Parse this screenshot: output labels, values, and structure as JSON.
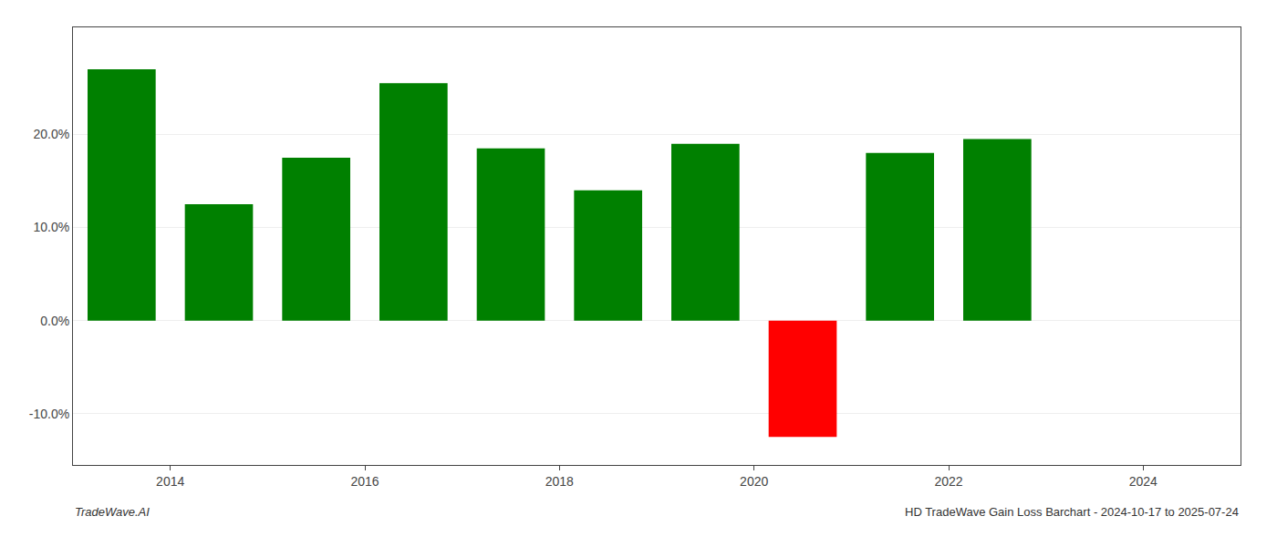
{
  "chart_data": {
    "type": "bar",
    "x": [
      2013.5,
      2014.5,
      2015.5,
      2016.5,
      2017.5,
      2018.5,
      2019.5,
      2020.5,
      2021.5,
      2022.5
    ],
    "values": [
      0.27,
      0.125,
      0.175,
      0.255,
      0.185,
      0.14,
      0.19,
      -0.125,
      0.18,
      0.195
    ],
    "colors": [
      "#008000",
      "#008000",
      "#008000",
      "#008000",
      "#008000",
      "#008000",
      "#008000",
      "#ff0000",
      "#008000",
      "#008000"
    ],
    "xlim": [
      2013.0,
      2025.0
    ],
    "xticks": [
      2014,
      2016,
      2018,
      2020,
      2022,
      2024
    ],
    "ylim": [
      -0.155,
      0.315
    ],
    "yticks": [
      {
        "value": -0.1,
        "label": "-10.0%"
      },
      {
        "value": 0.0,
        "label": "0.0%"
      },
      {
        "value": 0.1,
        "label": "10.0%"
      },
      {
        "value": 0.2,
        "label": "20.0%"
      }
    ],
    "grid": true,
    "annotations": [
      "TradeWave.AI",
      "HD TradeWave Gain Loss Barchart - 2024-10-17 to 2025-07-24"
    ]
  }
}
